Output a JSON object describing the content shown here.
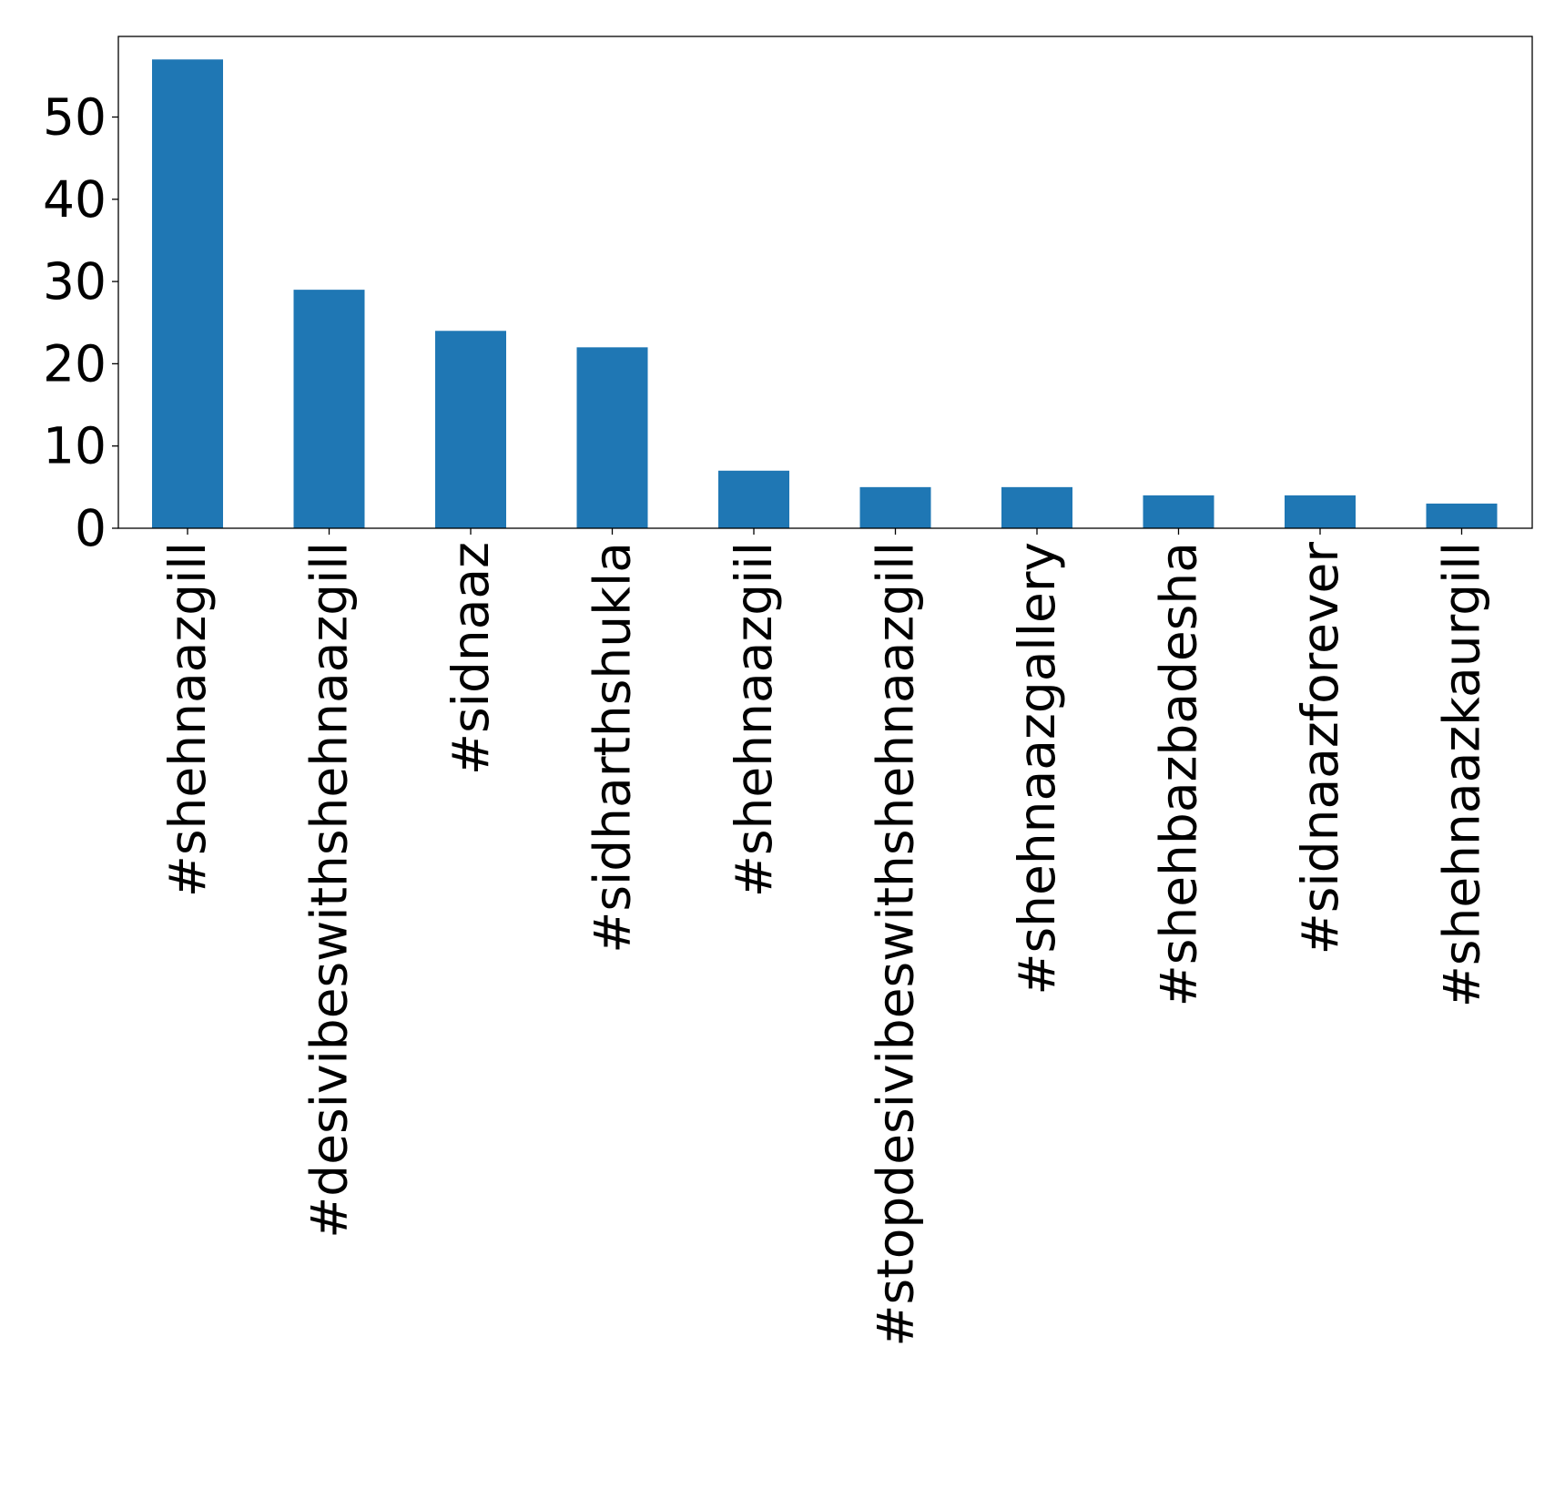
{
  "chart_data": {
    "type": "bar",
    "title": "",
    "xlabel": "",
    "ylabel": "",
    "categories": [
      "#shehnaazgill",
      "#desivibeswithshehnaazgill",
      "#sidnaaz",
      "#sidharthshukla",
      "#shehnaazgiil",
      "#stopdesivibeswithshehnaazgill",
      "#shehnaazgallery",
      "#shehbazbadesha",
      "#sidnaazforever",
      "#shehnaazkaurgill"
    ],
    "values": [
      57,
      29,
      24,
      22,
      7,
      5,
      5,
      4,
      4,
      3
    ],
    "ylim": [
      0,
      59.8
    ],
    "yticks": [
      0,
      10,
      20,
      30,
      40,
      50
    ],
    "bar_color": "#1f77b4",
    "grid": false,
    "legend": "none"
  }
}
